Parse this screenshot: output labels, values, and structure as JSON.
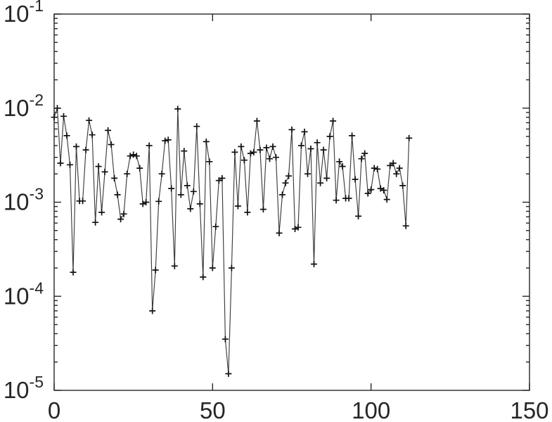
{
  "figure": {
    "background": "#ffffff",
    "axis_color": "#262626",
    "line_color": "#3c3c3c",
    "marker_color": "#111111",
    "text_color": "#262626"
  },
  "chart_data": {
    "type": "line",
    "title": "",
    "xlabel": "",
    "ylabel": "",
    "legend_position": "none",
    "marker": "plus",
    "log_y": true,
    "grid": false,
    "box": true,
    "xlim": [
      0,
      150
    ],
    "ylim": [
      1e-05,
      0.1
    ],
    "x_ticks": [
      0,
      50,
      100,
      150
    ],
    "x_tick_labels": [
      "0",
      "50",
      "100",
      "150"
    ],
    "y_ticks_exp": [
      -1,
      -2,
      -3,
      -4,
      -5
    ],
    "y_tick_labels": [
      {
        "base": "10",
        "exp": "-1"
      },
      {
        "base": "10",
        "exp": "-2"
      },
      {
        "base": "10",
        "exp": "-3"
      },
      {
        "base": "10",
        "exp": "-4"
      },
      {
        "base": "10",
        "exp": "-5"
      }
    ],
    "x": [
      0,
      1,
      2,
      3,
      4,
      5,
      6,
      7,
      8,
      9,
      10,
      11,
      12,
      13,
      14,
      15,
      16,
      17,
      18,
      19,
      20,
      21,
      22,
      23,
      24,
      25,
      26,
      27,
      28,
      29,
      30,
      31,
      32,
      33,
      34,
      35,
      36,
      37,
      38,
      39,
      40,
      41,
      42,
      43,
      44,
      45,
      46,
      47,
      48,
      49,
      50,
      51,
      52,
      53,
      54,
      55,
      56,
      57,
      58,
      59,
      60,
      61,
      62,
      63,
      64,
      65,
      66,
      67,
      68,
      69,
      70,
      71,
      72,
      73,
      74,
      75,
      76,
      77,
      78,
      79,
      80,
      81,
      82,
      83,
      84,
      85,
      86,
      87,
      88,
      89,
      90,
      91,
      92,
      93,
      94,
      95,
      96,
      97,
      98,
      99,
      100,
      101,
      102,
      103,
      104,
      105,
      106,
      107,
      108,
      109,
      110,
      111,
      112
    ],
    "y": [
      0.008,
      0.01,
      0.0026,
      0.0082,
      0.0051,
      0.0025,
      0.00018,
      0.0039,
      0.00103,
      0.00103,
      0.0036,
      0.0074,
      0.0052,
      0.00061,
      0.0024,
      0.00078,
      0.0021,
      0.0058,
      0.0041,
      0.0018,
      0.0012,
      0.00066,
      0.00075,
      0.002,
      0.0031,
      0.0032,
      0.0031,
      0.0023,
      0.00096,
      0.001,
      0.004,
      7e-05,
      0.00019,
      0.00102,
      0.002,
      0.0045,
      0.0046,
      0.0014,
      0.00021,
      0.0098,
      0.0012,
      0.0035,
      0.0015,
      0.00085,
      0.0013,
      0.0064,
      0.00096,
      0.00016,
      0.0044,
      0.0027,
      0.0002,
      0.00055,
      0.0017,
      0.0018,
      3.5e-05,
      1.5e-05,
      0.0002,
      0.0034,
      0.00091,
      0.0039,
      0.0028,
      0.00078,
      0.0033,
      0.0034,
      0.0073,
      0.0036,
      0.00084,
      0.0038,
      0.0029,
      0.0039,
      0.003,
      0.00047,
      0.0012,
      0.0016,
      0.0019,
      0.0059,
      0.00052,
      0.00054,
      0.004,
      0.0056,
      0.002,
      0.0037,
      0.00022,
      0.0043,
      0.0016,
      0.0036,
      0.0018,
      0.005,
      0.0073,
      0.00105,
      0.0027,
      0.0024,
      0.0011,
      0.0011,
      0.0051,
      0.00175,
      0.00071,
      0.0029,
      0.0033,
      0.00124,
      0.00136,
      0.0023,
      0.00225,
      0.0014,
      0.00134,
      0.00107,
      0.00245,
      0.0026,
      0.002,
      0.0023,
      0.0015,
      0.00056,
      0.0048
    ]
  }
}
